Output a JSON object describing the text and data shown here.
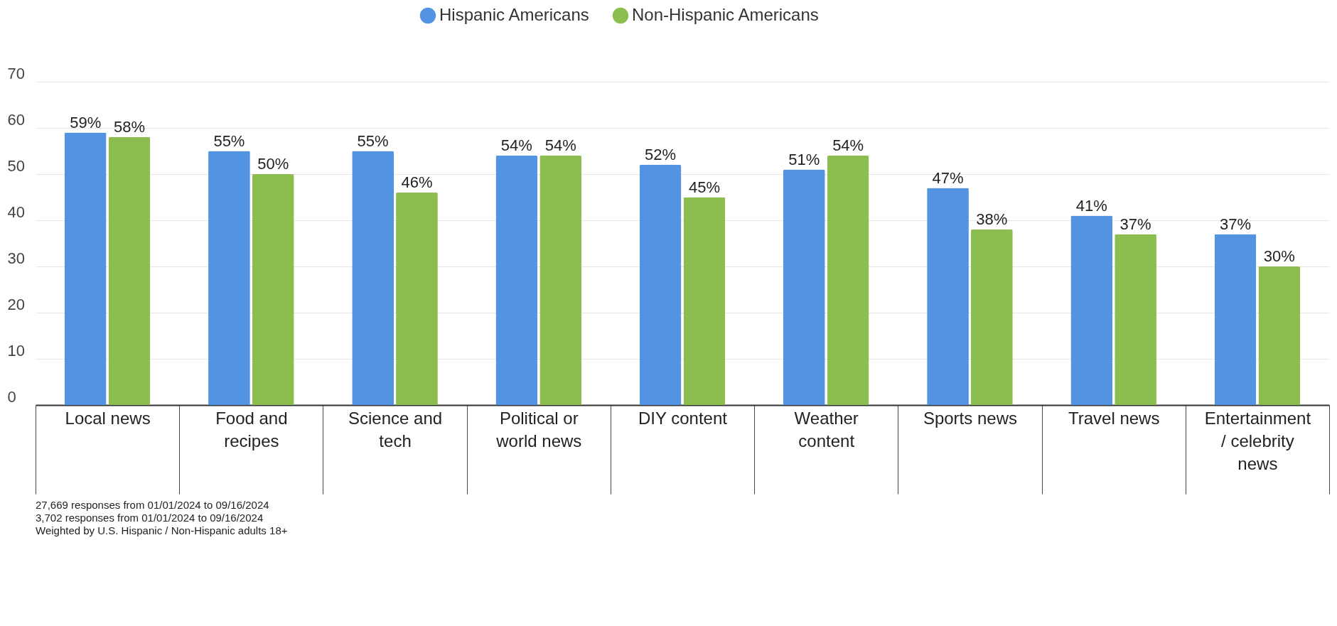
{
  "chart_data": {
    "type": "bar",
    "categories": [
      "Local news",
      "Food and recipes",
      "Science and tech",
      "Political or world news",
      "DIY content",
      "Weather content",
      "Sports news",
      "Travel news",
      "Entertainment / celebrity news"
    ],
    "series": [
      {
        "name": "Hispanic Americans",
        "color": "#5294e2",
        "values": [
          59,
          55,
          55,
          54,
          52,
          51,
          47,
          41,
          37
        ],
        "value_labels": [
          "59%",
          "55%",
          "55%",
          "54%",
          "52%",
          "51%",
          "47%",
          "41%",
          "37%"
        ]
      },
      {
        "name": "Non-Hispanic Americans",
        "color": "#8bbd4f",
        "values": [
          58,
          50,
          46,
          54,
          45,
          54,
          38,
          37,
          30
        ],
        "value_labels": [
          "58%",
          "50%",
          "46%",
          "54%",
          "45%",
          "54%",
          "38%",
          "37%",
          "30%"
        ]
      }
    ],
    "ylim": [
      0,
      70
    ],
    "yticks": [
      0,
      10,
      20,
      30,
      40,
      50,
      60,
      70
    ],
    "grid": "y",
    "legend": "top",
    "annotations": [
      "27,669 responses from 01/01/2024 to 09/16/2024",
      "3,702 responses from 01/01/2024 to 09/16/2024",
      "Weighted by U.S. Hispanic / Non-Hispanic adults 18+"
    ]
  }
}
